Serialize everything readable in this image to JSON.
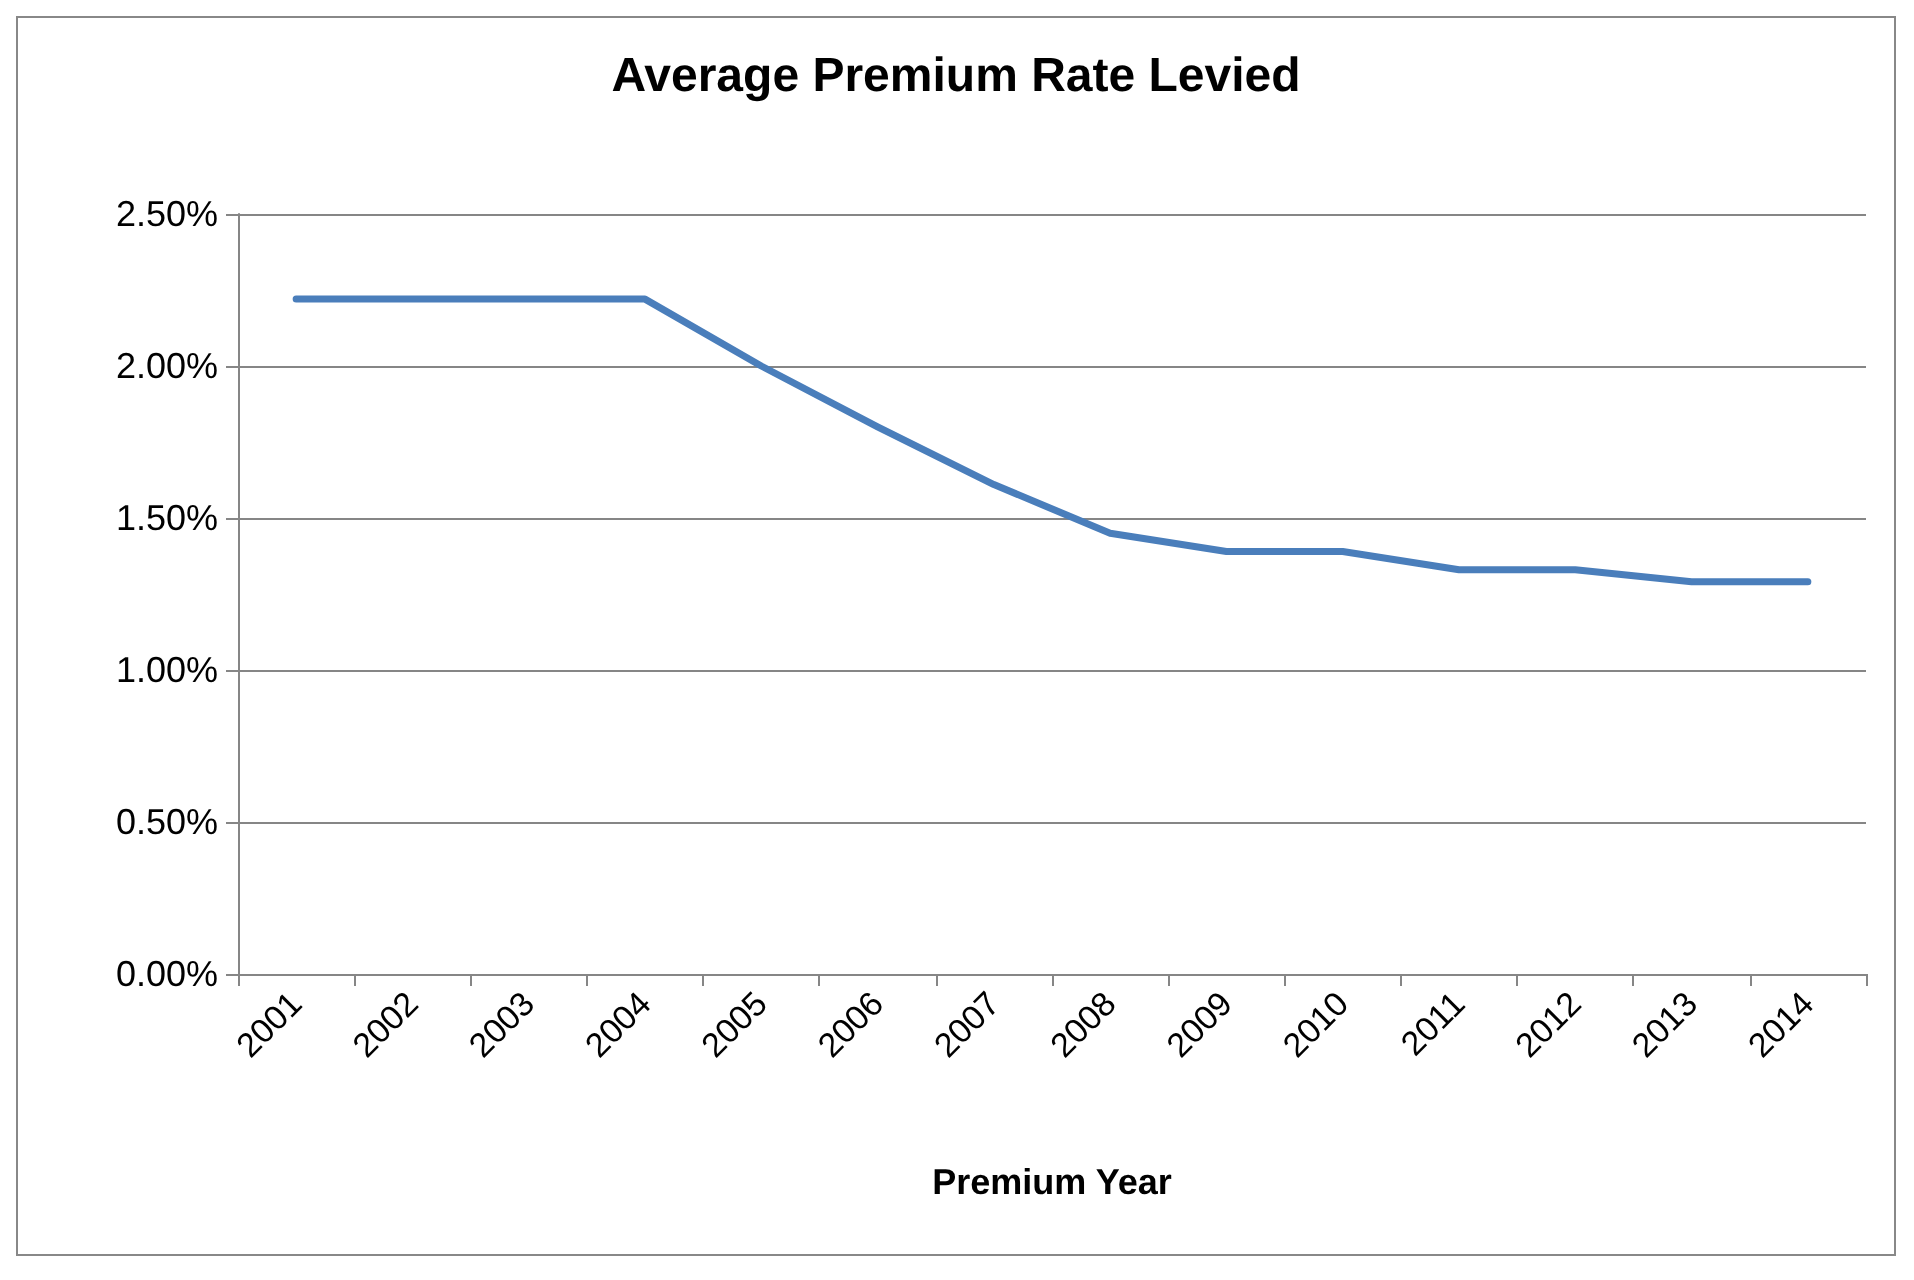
{
  "chart_data": {
    "type": "line",
    "title": "Average Premium Rate Levied",
    "xlabel": "Premium Year",
    "categories": [
      "2001",
      "2002",
      "2003",
      "2004",
      "2005",
      "2006",
      "2007",
      "2008",
      "2009",
      "2010",
      "2011",
      "2012",
      "2013",
      "2014"
    ],
    "series": [
      {
        "color": "#4a7ebb",
        "values": [
          2.22,
          2.22,
          2.22,
          2.22,
          2.0,
          1.8,
          1.61,
          1.45,
          1.39,
          1.39,
          1.33,
          1.33,
          1.29,
          1.29
        ]
      }
    ],
    "ylim": [
      0,
      2.5
    ],
    "yticks": [
      {
        "value": 0,
        "label": "0.00%"
      },
      {
        "value": 0.5,
        "label": "0.50%"
      },
      {
        "value": 1,
        "label": "1.00%"
      },
      {
        "value": 1.5,
        "label": "1.50%"
      },
      {
        "value": 2,
        "label": "2.00%"
      },
      {
        "value": 2.5,
        "label": "2.50%"
      }
    ],
    "grid": "y",
    "marker": "none",
    "line_style": "solid"
  }
}
